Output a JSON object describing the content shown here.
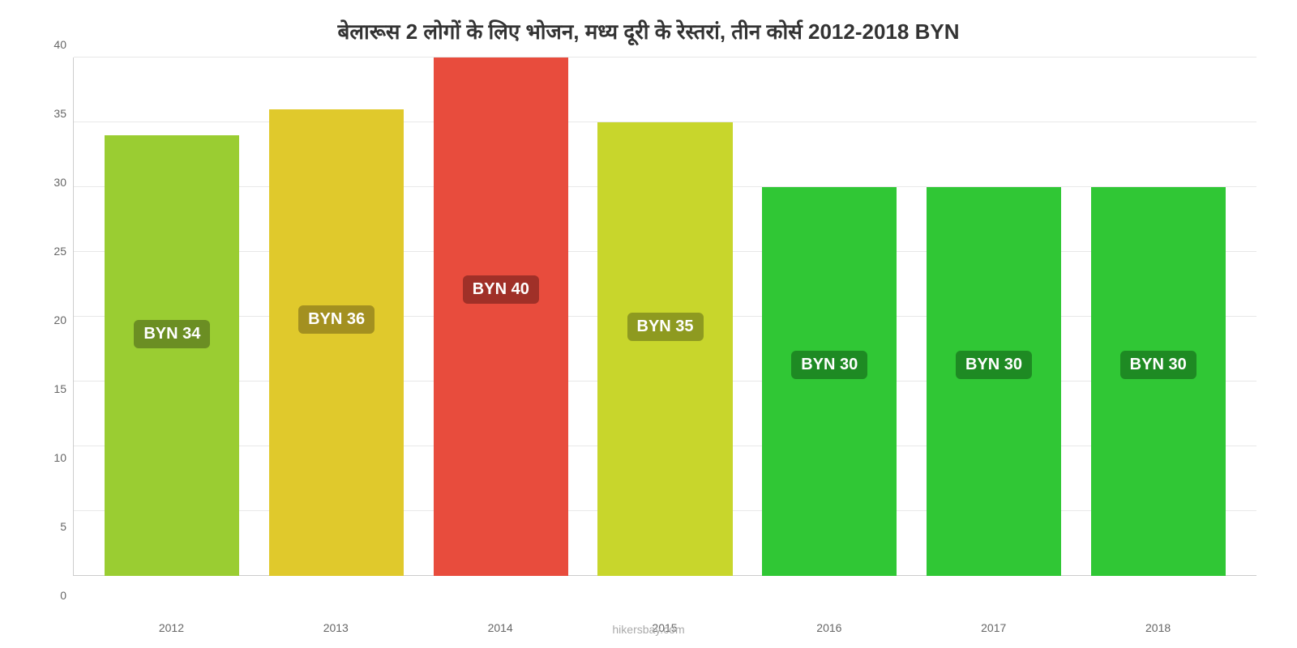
{
  "chart": {
    "type": "bar",
    "title": "बेलारूस 2 लोगों के लिए भोजन, मध्य दूरी के रेस्तरां, तीन कोर्स 2012-2018 BYN",
    "title_fontsize": 26,
    "background_color": "#ffffff",
    "grid_color": "#e8e8e8",
    "axis_color": "#cccccc",
    "tick_color": "#666666",
    "tick_fontsize": 14,
    "ylim": [
      0,
      40
    ],
    "ytick_step": 5,
    "yticks": [
      0,
      5,
      10,
      15,
      20,
      25,
      30,
      35,
      40
    ],
    "categories": [
      "2012",
      "2013",
      "2014",
      "2015",
      "2016",
      "2017",
      "2018"
    ],
    "values": [
      34,
      36,
      40,
      35,
      30,
      30,
      30
    ],
    "bar_colors": [
      "#9acd32",
      "#e0c92c",
      "#e84c3d",
      "#c8d62c",
      "#30c735",
      "#30c735",
      "#30c735"
    ],
    "label_bg_colors": [
      "#6b8e23",
      "#a39020",
      "#a03028",
      "#8e9a20",
      "#1e8a23",
      "#1e8a23",
      "#1e8a23"
    ],
    "value_labels": [
      "BYN 34",
      "BYN 36",
      "BYN 40",
      "BYN 35",
      "BYN 30",
      "BYN 30",
      "BYN 30"
    ],
    "label_fontsize": 20,
    "bar_width_pct": 82,
    "source": "hikersbay.com"
  }
}
